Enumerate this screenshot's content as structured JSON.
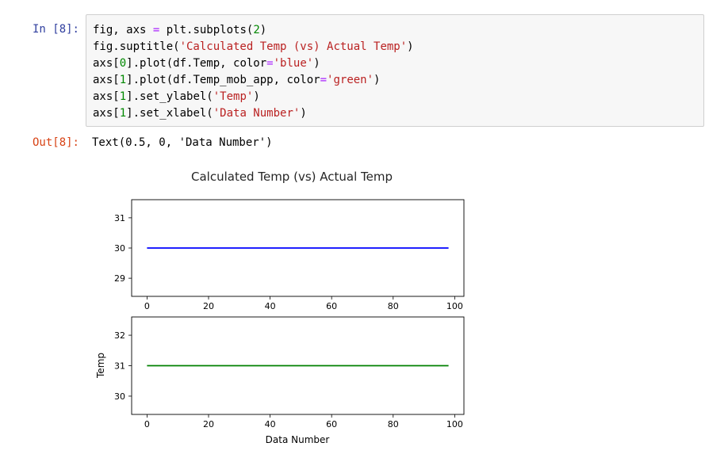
{
  "input_prompt": "In [8]:",
  "code": {
    "line1": {
      "a": "fig, axs ",
      "op": "=",
      "b": " plt.subplots(",
      "n": "2",
      "c": ")"
    },
    "line2": {
      "a": "fig.suptitle(",
      "s": "'Calculated Temp (vs) Actual Temp'",
      "c": ")"
    },
    "line3": {
      "a": "axs[",
      "n": "0",
      "b": "].plot(df.Temp, color",
      "op": "=",
      "s": "'blue'",
      "c": ")"
    },
    "line4": {
      "a": "axs[",
      "n": "1",
      "b": "].plot(df.Temp_mob_app, color",
      "op": "=",
      "s": "'green'",
      "c": ")"
    },
    "line5": {
      "a": "axs[",
      "n": "1",
      "b": "].set_ylabel(",
      "s": "'Temp'",
      "c": ")"
    },
    "line6": {
      "a": "axs[",
      "n": "1",
      "b": "].set_xlabel(",
      "s": "'Data Number'",
      "c": ")"
    }
  },
  "output_prompt": "Out[8]:",
  "output_text": "Text(0.5, 0, 'Data Number')",
  "colors": {
    "prompt_in": "#303f9f",
    "prompt_out": "#d84315",
    "series_blue": "#0000ff",
    "series_green": "#008000"
  },
  "chart_data": [
    {
      "type": "line",
      "title": "Calculated Temp (vs) Actual Temp",
      "xlabel": "",
      "ylabel": "",
      "xlim": [
        -5,
        103
      ],
      "ylim": [
        28.4,
        31.6
      ],
      "x_ticks": [
        0,
        20,
        40,
        60,
        80,
        100
      ],
      "x_tick_labels": [
        "0",
        "20",
        "40",
        "60",
        "80",
        "100"
      ],
      "y_ticks": [
        29,
        30,
        31
      ],
      "y_tick_labels": [
        "29",
        "30",
        "31"
      ],
      "grid": false,
      "series": [
        {
          "color": "#0000ff",
          "x": [
            0,
            98
          ],
          "y": [
            30,
            30
          ]
        }
      ]
    },
    {
      "type": "line",
      "title": "",
      "xlabel": "Data Number",
      "ylabel": "Temp",
      "xlim": [
        -5,
        103
      ],
      "ylim": [
        29.4,
        32.6
      ],
      "x_ticks": [
        0,
        20,
        40,
        60,
        80,
        100
      ],
      "x_tick_labels": [
        "0",
        "20",
        "40",
        "60",
        "80",
        "100"
      ],
      "y_ticks": [
        30,
        31,
        32
      ],
      "y_tick_labels": [
        "30",
        "31",
        "32"
      ],
      "grid": false,
      "series": [
        {
          "color": "#008000",
          "x": [
            0,
            98
          ],
          "y": [
            31,
            31
          ]
        }
      ]
    }
  ]
}
